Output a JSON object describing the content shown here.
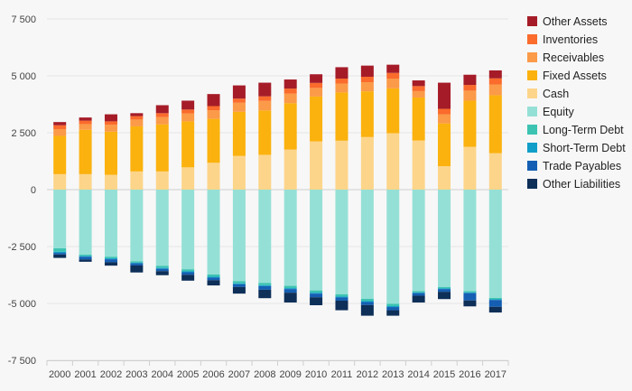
{
  "chart_data": {
    "type": "bar",
    "stacked": true,
    "categories": [
      "2000",
      "2001",
      "2002",
      "2003",
      "2004",
      "2005",
      "2006",
      "2007",
      "2008",
      "2009",
      "2010",
      "2011",
      "2012",
      "2013",
      "2014",
      "2015",
      "2016",
      "2017"
    ],
    "ylim": [
      -7500,
      7500
    ],
    "yticks": [
      7500,
      5000,
      2500,
      0,
      -2500,
      -5000,
      -7500
    ],
    "ytick_labels": [
      "7 500",
      "5 000",
      "2 500",
      "0",
      "-2 500",
      "-5 000",
      "-7 500"
    ],
    "grid": true,
    "legend_position": "right",
    "assets": [
      {
        "name": "Cash",
        "color": "#fdd58a",
        "values": [
          680,
          680,
          650,
          800,
          800,
          980,
          1180,
          1480,
          1530,
          1760,
          2120,
          2150,
          2310,
          2480,
          2160,
          1030,
          1880,
          1600
        ]
      },
      {
        "name": "Fixed Assets",
        "color": "#fbb20e",
        "values": [
          1680,
          1950,
          1900,
          1980,
          2070,
          2020,
          1930,
          1940,
          1950,
          2040,
          1970,
          2120,
          2010,
          1970,
          1890,
          1880,
          2030,
          2550
        ]
      },
      {
        "name": "Receivables",
        "color": "#fb9a48",
        "values": [
          300,
          250,
          300,
          300,
          320,
          350,
          380,
          400,
          420,
          420,
          380,
          390,
          400,
          430,
          280,
          400,
          440,
          470
        ]
      },
      {
        "name": "Inventories",
        "color": "#fa6b2c",
        "values": [
          170,
          150,
          150,
          150,
          170,
          170,
          180,
          180,
          200,
          220,
          220,
          220,
          240,
          250,
          220,
          240,
          250,
          270
        ]
      },
      {
        "name": "Other Assets",
        "color": "#a51c28",
        "values": [
          140,
          140,
          310,
          130,
          350,
          390,
          530,
          580,
          600,
          400,
          380,
          500,
          490,
          360,
          250,
          1150,
          450,
          350
        ]
      }
    ],
    "liabilities": [
      {
        "name": "Equity",
        "color": "#95e0d6",
        "values": [
          -2580,
          -2860,
          -2950,
          -3150,
          -3350,
          -3500,
          -3730,
          -4020,
          -4100,
          -4230,
          -4430,
          -4600,
          -4800,
          -5020,
          -4460,
          -4280,
          -4460,
          -4760
        ]
      },
      {
        "name": "Long-Term Debt",
        "color": "#3cc3b2",
        "values": [
          -150,
          -60,
          -70,
          -60,
          -90,
          -90,
          -100,
          -100,
          -100,
          -100,
          -100,
          -100,
          -100,
          -100,
          -60,
          -60,
          -60,
          -60
        ]
      },
      {
        "name": "Short-Term Debt",
        "color": "#119ec8",
        "values": [
          -50,
          -30,
          -40,
          -30,
          -40,
          -40,
          -40,
          -40,
          -40,
          -40,
          -40,
          -40,
          -40,
          -40,
          -30,
          -30,
          -30,
          -30
        ]
      },
      {
        "name": "Trade Payables",
        "color": "#145fb3",
        "values": [
          -70,
          -120,
          -130,
          -90,
          -100,
          -110,
          -110,
          -120,
          -160,
          -160,
          -160,
          -140,
          -130,
          -140,
          -110,
          -120,
          -320,
          -300
        ]
      },
      {
        "name": "Other Liabilities",
        "color": "#0d2f58",
        "values": [
          -150,
          -100,
          -150,
          -310,
          -180,
          -260,
          -230,
          -290,
          -370,
          -430,
          -350,
          -420,
          -470,
          -240,
          -300,
          -320,
          -260,
          -250
        ]
      }
    ],
    "legend": [
      {
        "name": "Other Assets",
        "color": "#a51c28"
      },
      {
        "name": "Inventories",
        "color": "#fa6b2c"
      },
      {
        "name": "Receivables",
        "color": "#fb9a48"
      },
      {
        "name": "Fixed Assets",
        "color": "#fbb20e"
      },
      {
        "name": "Cash",
        "color": "#fdd58a"
      },
      {
        "name": "Equity",
        "color": "#95e0d6"
      },
      {
        "name": "Long-Term Debt",
        "color": "#3cc3b2"
      },
      {
        "name": "Short-Term Debt",
        "color": "#119ec8"
      },
      {
        "name": "Trade Payables",
        "color": "#145fb3"
      },
      {
        "name": "Other Liabilities",
        "color": "#0d2f58"
      }
    ]
  }
}
